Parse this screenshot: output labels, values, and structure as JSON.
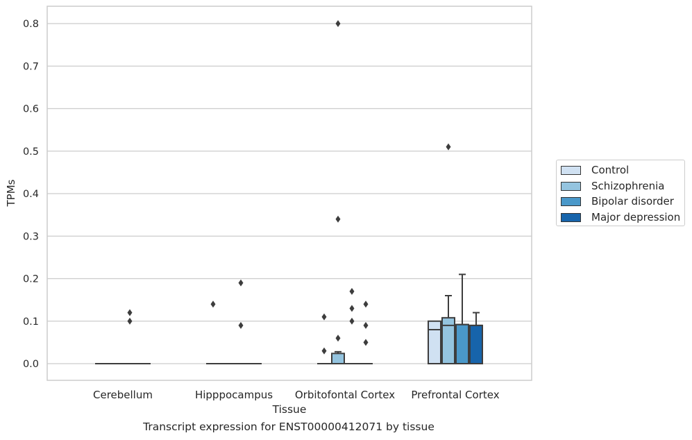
{
  "caption": "Transcript expression for ENST00000412071 by tissue",
  "chart_data": {
    "type": "box",
    "xlabel": "Tissue",
    "ylabel": "TPMs",
    "ylim": [
      -0.04,
      0.84
    ],
    "yticks": [
      "0.0",
      "0.1",
      "0.2",
      "0.3",
      "0.4",
      "0.5",
      "0.6",
      "0.7",
      "0.8"
    ],
    "categories": [
      "Cerebellum",
      "Hipppocampus",
      "Orbitofontal Cortex",
      "Prefrontal Cortex"
    ],
    "grid": "horizontal",
    "legend_position": "right",
    "series": [
      {
        "name": "Control",
        "color": "#d0e1f2",
        "boxes": [
          {
            "q1": 0,
            "median": 0,
            "q3": 0,
            "whislo": 0,
            "whishi": 0,
            "fliers": []
          },
          {
            "q1": 0,
            "median": 0,
            "q3": 0,
            "whislo": 0,
            "whishi": 0,
            "fliers": [
              0.14
            ]
          },
          {
            "q1": 0,
            "median": 0,
            "q3": 0,
            "whislo": 0,
            "whishi": 0,
            "fliers": [
              0.03,
              0.11
            ]
          },
          {
            "q1": 0,
            "median": 0.08,
            "q3": 0.1,
            "whislo": 0,
            "whishi": 0.1,
            "fliers": []
          }
        ]
      },
      {
        "name": "Schizophrenia",
        "color": "#94c4df",
        "boxes": [
          {
            "q1": 0,
            "median": 0,
            "q3": 0,
            "whislo": 0,
            "whishi": 0,
            "fliers": []
          },
          {
            "q1": 0,
            "median": 0,
            "q3": 0,
            "whislo": 0,
            "whishi": 0,
            "fliers": []
          },
          {
            "q1": 0,
            "median": 0,
            "q3": 0.024,
            "whislo": 0,
            "whishi": 0.028,
            "fliers": [
              0.06,
              0.34,
              0.8
            ]
          },
          {
            "q1": 0,
            "median": 0.09,
            "q3": 0.108,
            "whislo": 0,
            "whishi": 0.16,
            "fliers": [
              0.51
            ]
          }
        ]
      },
      {
        "name": "Bipolar disorder",
        "color": "#4a98c9",
        "boxes": [
          {
            "q1": 0,
            "median": 0,
            "q3": 0,
            "whislo": 0,
            "whishi": 0,
            "fliers": [
              0.1,
              0.12
            ]
          },
          {
            "q1": 0,
            "median": 0,
            "q3": 0,
            "whislo": 0,
            "whishi": 0,
            "fliers": [
              0.09,
              0.19
            ]
          },
          {
            "q1": 0,
            "median": 0,
            "q3": 0,
            "whislo": 0,
            "whishi": 0,
            "fliers": [
              0.1,
              0.13,
              0.17
            ]
          },
          {
            "q1": 0,
            "median": 0.092,
            "q3": 0.092,
            "whislo": 0,
            "whishi": 0.21,
            "fliers": []
          }
        ]
      },
      {
        "name": "Major depression",
        "color": "#1764ab",
        "boxes": [
          {
            "q1": 0,
            "median": 0,
            "q3": 0,
            "whislo": 0,
            "whishi": 0,
            "fliers": []
          },
          {
            "q1": 0,
            "median": 0,
            "q3": 0,
            "whislo": 0,
            "whishi": 0,
            "fliers": []
          },
          {
            "q1": 0,
            "median": 0,
            "q3": 0,
            "whislo": 0,
            "whishi": 0,
            "fliers": [
              0.05,
              0.09,
              0.14
            ]
          },
          {
            "q1": 0,
            "median": 0.09,
            "q3": 0.09,
            "whislo": 0,
            "whishi": 0.12,
            "fliers": []
          }
        ]
      }
    ]
  }
}
